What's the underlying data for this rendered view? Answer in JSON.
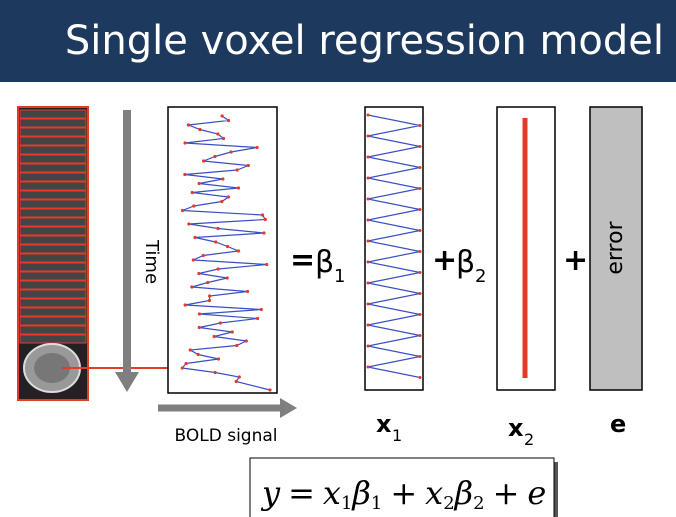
{
  "title": "Single voxel regression model",
  "labels": {
    "time": "Time",
    "bold_signal": "BOLD signal",
    "error": "error"
  },
  "equals_beta": {
    "sign": "=",
    "symbol": "β",
    "subscript": "1"
  },
  "plus_beta": {
    "sign": "+",
    "symbol": "β",
    "subscript": "2"
  },
  "plus": "+",
  "regressors": [
    {
      "symbol": "x",
      "subscript": "1"
    },
    {
      "symbol": "x",
      "subscript": "2"
    },
    {
      "symbol": "e"
    }
  ],
  "equation": [
    "y",
    "=",
    "x",
    "1",
    "β",
    "1",
    "+",
    "x",
    "2",
    "β",
    "2",
    "+",
    "e"
  ]
}
